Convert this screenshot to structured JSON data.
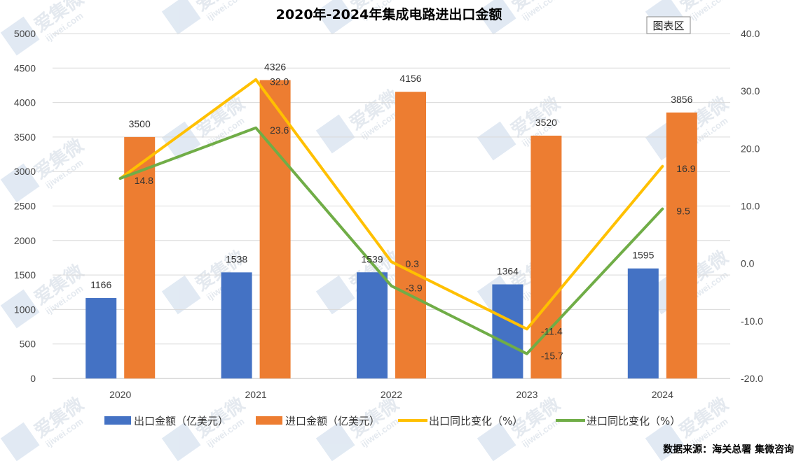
{
  "watermark": {
    "brand": "爱集微",
    "url": "ijiwei.com",
    "color": "#c9d8ea"
  },
  "chart_data": {
    "type": "bar+line",
    "title": "2020年-2024年集成电路进出口金额",
    "categories": [
      "2020",
      "2021",
      "2022",
      "2023",
      "2024"
    ],
    "ylim_left": [
      0,
      5000
    ],
    "ylim_right": [
      -20,
      40
    ],
    "left_ticks": [
      "0",
      "500",
      "1000",
      "1500",
      "2000",
      "2500",
      "3000",
      "3500",
      "4000",
      "4500",
      "5000"
    ],
    "right_ticks": [
      "-20.0",
      "-10.0",
      "0.0",
      "10.0",
      "20.0",
      "30.0",
      "40.0"
    ],
    "grid": true,
    "legend_position": "bottom",
    "series": [
      {
        "name": "出口金额（亿美元）",
        "kind": "bar",
        "axis": "left",
        "color": "#4472c4",
        "values": [
          1166,
          1538,
          1539,
          1364,
          1595
        ]
      },
      {
        "name": "进口金额（亿美元）",
        "kind": "bar",
        "axis": "left",
        "color": "#ed7d31",
        "values": [
          3500,
          4326,
          4156,
          3520,
          3856
        ]
      },
      {
        "name": "出口同比变化（%）",
        "kind": "line",
        "axis": "right",
        "color": "#ffc000",
        "values": [
          14.8,
          32.0,
          0.3,
          -11.4,
          16.9
        ],
        "labels": [
          "14.8",
          "32.0",
          "0.3",
          "-11.4",
          "16.9"
        ]
      },
      {
        "name": "进口同比变化（%）",
        "kind": "line",
        "axis": "right",
        "color": "#70ad47",
        "values": [
          14.8,
          23.6,
          -3.9,
          -15.7,
          9.5
        ],
        "labels": [
          "",
          "23.6",
          "-3.9",
          "-15.7",
          "9.5"
        ]
      }
    ]
  },
  "chart_area_button": "图表区",
  "source": "数据来源：海关总署   集微咨询"
}
